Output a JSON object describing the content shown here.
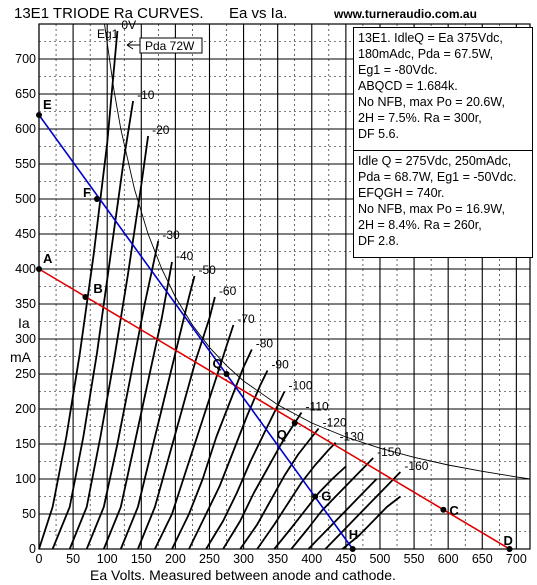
{
  "chart_data": {
    "type": "line",
    "title": "13E1 TRIODE Ra CURVES.",
    "subtitle": "Ea vs Ia.",
    "website": "www.turneraudio.com.au",
    "xlabel": "Ea Volts. Measured between anode and cathode.",
    "ylabel_line1": "Ia",
    "ylabel_line2": "mA",
    "xlim": [
      0,
      720
    ],
    "ylim": [
      0,
      750
    ],
    "x_ticks": [
      0,
      50,
      100,
      150,
      200,
      250,
      300,
      350,
      400,
      450,
      500,
      550,
      600,
      650,
      700
    ],
    "y_ticks": [
      0,
      50,
      100,
      150,
      200,
      250,
      300,
      350,
      400,
      450,
      500,
      550,
      600,
      650,
      700
    ],
    "grid": true,
    "curve_family": {
      "name": "Eg1",
      "labels": [
        "0V",
        "-10",
        "-20",
        "-30",
        "-40",
        "-50",
        "-60",
        "-70",
        "-80",
        "-90",
        "-100",
        "-110",
        "-120",
        "-130",
        "-150",
        "-160"
      ],
      "curves": [
        {
          "label": "0V",
          "points": [
            [
              0,
              0
            ],
            [
              20,
              60
            ],
            [
              40,
              160
            ],
            [
              60,
              280
            ],
            [
              80,
              420
            ],
            [
              100,
              580
            ],
            [
              115,
              740
            ]
          ]
        },
        {
          "label": "-10",
          "points": [
            [
              20,
              0
            ],
            [
              45,
              60
            ],
            [
              65,
              160
            ],
            [
              85,
              280
            ],
            [
              105,
              420
            ],
            [
              125,
              560
            ],
            [
              138,
              640
            ]
          ]
        },
        {
          "label": "-20",
          "points": [
            [
              45,
              0
            ],
            [
              70,
              60
            ],
            [
              90,
              160
            ],
            [
              110,
              270
            ],
            [
              130,
              390
            ],
            [
              150,
              520
            ],
            [
              160,
              590
            ]
          ]
        },
        {
          "label": "-30",
          "points": [
            [
              70,
              0
            ],
            [
              95,
              60
            ],
            [
              115,
              150
            ],
            [
              135,
              250
            ],
            [
              155,
              350
            ],
            [
              175,
              440
            ]
          ]
        },
        {
          "label": "-40",
          "points": [
            [
              95,
              0
            ],
            [
              120,
              60
            ],
            [
              140,
              150
            ],
            [
              160,
              240
            ],
            [
              180,
              330
            ],
            [
              195,
              410
            ]
          ]
        },
        {
          "label": "-50",
          "points": [
            [
              120,
              0
            ],
            [
              145,
              60
            ],
            [
              165,
              140
            ],
            [
              185,
              220
            ],
            [
              205,
              300
            ],
            [
              220,
              360
            ],
            [
              228,
              390
            ]
          ]
        },
        {
          "label": "-60",
          "points": [
            [
              145,
              0
            ],
            [
              170,
              60
            ],
            [
              190,
              130
            ],
            [
              210,
              200
            ],
            [
              230,
              270
            ],
            [
              250,
              330
            ],
            [
              258,
              360
            ]
          ]
        },
        {
          "label": "-70",
          "points": [
            [
              170,
              0
            ],
            [
              195,
              50
            ],
            [
              215,
              110
            ],
            [
              235,
              170
            ],
            [
              255,
              230
            ],
            [
              275,
              290
            ],
            [
              285,
              320
            ]
          ]
        },
        {
          "label": "-80",
          "points": [
            [
              195,
              0
            ],
            [
              220,
              50
            ],
            [
              240,
              100
            ],
            [
              260,
              160
            ],
            [
              280,
              210
            ],
            [
              300,
              260
            ],
            [
              312,
              285
            ]
          ]
        },
        {
          "label": "-90",
          "points": [
            [
              220,
              0
            ],
            [
              245,
              50
            ],
            [
              265,
              90
            ],
            [
              285,
              140
            ],
            [
              305,
              190
            ],
            [
              325,
              235
            ],
            [
              335,
              255
            ]
          ]
        },
        {
          "label": "-100",
          "points": [
            [
              245,
              0
            ],
            [
              270,
              40
            ],
            [
              290,
              80
            ],
            [
              310,
              125
            ],
            [
              330,
              165
            ],
            [
              350,
              205
            ],
            [
              360,
              225
            ]
          ]
        },
        {
          "label": "-110",
          "points": [
            [
              270,
              0
            ],
            [
              295,
              40
            ],
            [
              315,
              80
            ],
            [
              335,
              115
            ],
            [
              355,
              150
            ],
            [
              375,
              180
            ],
            [
              385,
              195
            ]
          ]
        },
        {
          "label": "-120",
          "points": [
            [
              295,
              0
            ],
            [
              320,
              35
            ],
            [
              340,
              70
            ],
            [
              360,
              105
            ],
            [
              380,
              135
            ],
            [
              400,
              160
            ],
            [
              410,
              172
            ]
          ]
        },
        {
          "label": "-130",
          "points": [
            [
              320,
              0
            ],
            [
              345,
              35
            ],
            [
              365,
              65
            ],
            [
              385,
              95
            ],
            [
              405,
              120
            ],
            [
              425,
              142
            ],
            [
              435,
              152
            ]
          ]
        },
        {
          "label": "",
          "points": [
            [
              345,
              0
            ],
            [
              370,
              30
            ],
            [
              390,
              55
            ],
            [
              410,
              80
            ],
            [
              430,
              100
            ],
            [
              450,
              118
            ]
          ]
        },
        {
          "label": "-150",
          "points": [
            [
              370,
              0
            ],
            [
              395,
              30
            ],
            [
              415,
              55
            ],
            [
              435,
              75
            ],
            [
              455,
              95
            ],
            [
              475,
              115
            ],
            [
              490,
              130
            ]
          ]
        },
        {
          "label": "",
          "points": [
            [
              395,
              0
            ],
            [
              420,
              25
            ],
            [
              440,
              45
            ],
            [
              460,
              65
            ],
            [
              480,
              85
            ],
            [
              495,
              100
            ]
          ]
        },
        {
          "label": "-160",
          "points": [
            [
              420,
              0
            ],
            [
              445,
              25
            ],
            [
              465,
              45
            ],
            [
              485,
              65
            ],
            [
              505,
              85
            ],
            [
              520,
              100
            ],
            [
              530,
              110
            ]
          ]
        },
        {
          "label": "",
          "points": [
            [
              445,
              0
            ],
            [
              470,
              20
            ],
            [
              490,
              40
            ],
            [
              510,
              60
            ],
            [
              530,
              75
            ]
          ]
        }
      ]
    },
    "pda_curve": {
      "label": "Pda 72W",
      "points": [
        [
          96,
          750
        ],
        [
          110,
          655
        ],
        [
          120,
          600
        ],
        [
          140,
          514
        ],
        [
          160,
          450
        ],
        [
          180,
          400
        ],
        [
          200,
          360
        ],
        [
          225,
          320
        ],
        [
          250,
          288
        ],
        [
          275,
          262
        ],
        [
          300,
          240
        ],
        [
          350,
          206
        ],
        [
          400,
          180
        ],
        [
          450,
          160
        ],
        [
          500,
          144
        ],
        [
          550,
          131
        ],
        [
          600,
          120
        ],
        [
          650,
          111
        ],
        [
          700,
          103
        ],
        [
          720,
          100
        ]
      ]
    },
    "load_lines": [
      {
        "name": "ABQCD",
        "color": "#e00000",
        "points": [
          [
            0,
            400
          ],
          [
            690,
            0
          ]
        ]
      },
      {
        "name": "EFQGH",
        "color": "#0000cc",
        "points": [
          [
            0,
            620
          ],
          [
            460,
            0
          ]
        ]
      }
    ],
    "points": [
      {
        "label": "A",
        "x": 0,
        "y": 400
      },
      {
        "label": "B",
        "x": 68,
        "y": 360
      },
      {
        "label": "Q",
        "x": 275,
        "y": 250
      },
      {
        "label": "Q",
        "x": 375,
        "y": 180
      },
      {
        "label": "C",
        "x": 593,
        "y": 56
      },
      {
        "label": "D",
        "x": 690,
        "y": 0
      },
      {
        "label": "E",
        "x": 0,
        "y": 620
      },
      {
        "label": "F",
        "x": 85,
        "y": 500
      },
      {
        "label": "G",
        "x": 405,
        "y": 75
      },
      {
        "label": "H",
        "x": 460,
        "y": 0
      }
    ]
  },
  "info1": [
    "13E1. IdleQ = Ea  375Vdc,",
    "180mAdc, Pda = 67.5W,",
    "Eg1 = -80Vdc.",
    "ABQCD = 1.684k.",
    "No NFB, max Po = 20.6W,",
    "2H = 7.5%.  Ra = 300r,",
    "DF 5.6."
  ],
  "info2": [
    "Idle Q = 275Vdc, 250mAdc,",
    "Pda = 68.7W, Eg1 = -50Vdc.",
    "EFQGH = 740r.",
    "No NFB, max Po = 16.9W,",
    "2H = 8.4%. Ra = 260r,",
    "DF 2.8."
  ],
  "colors": {
    "grid": "#000000",
    "load_red": "#e00000",
    "load_blue": "#0000cc",
    "curve": "#000000"
  }
}
